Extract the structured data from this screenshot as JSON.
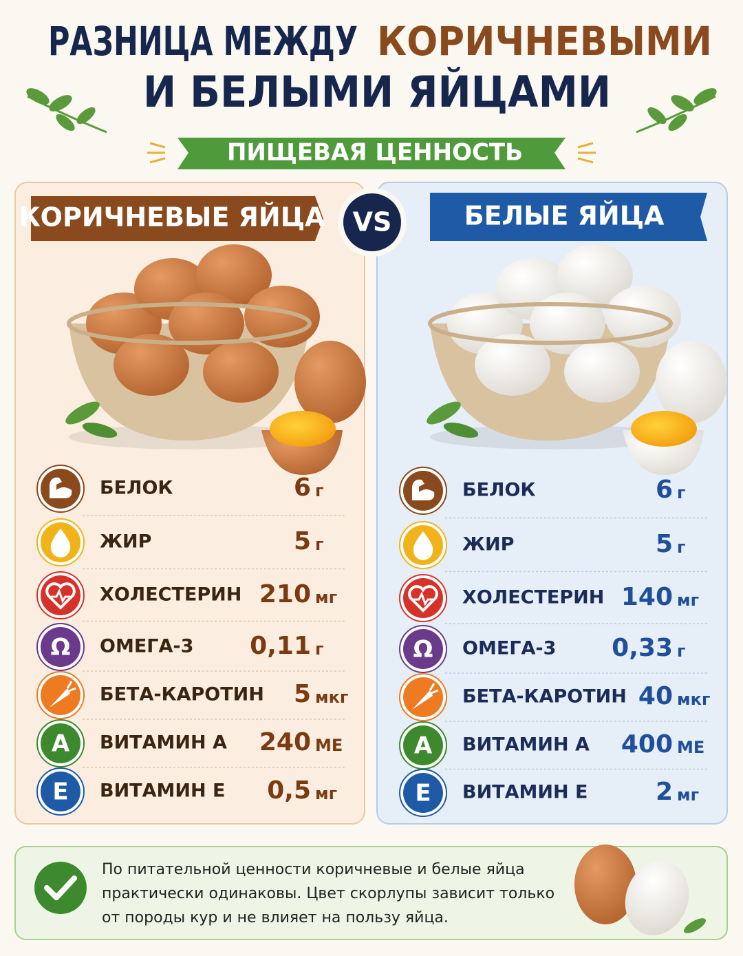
{
  "title": {
    "part1": "РАЗНИЦА МЕЖДУ",
    "part2": "КОРИЧНЕВЫМИ",
    "line2": "И БЕЛЫМИ ЯЙЦАМИ"
  },
  "subtitle": "ПИЩЕВАЯ ЦЕННОСТЬ",
  "vs": "VS",
  "panels": [
    {
      "title": "КОРИЧНЕВЫЕ ЯЙЦА",
      "rows": [
        {
          "name": "БЕЛОК",
          "amount": "6",
          "unit": "г"
        },
        {
          "name": "ЖИР",
          "amount": "5",
          "unit": "г"
        },
        {
          "name": "ХОЛЕСТЕРИН",
          "amount": "210",
          "unit": "мг"
        },
        {
          "name": "ОМЕГА-3",
          "amount": "0,11",
          "unit": "г",
          "icon": "Ω"
        },
        {
          "name": "БЕТА-КАРОТИН",
          "amount": "5",
          "unit": "мкг"
        },
        {
          "name": "ВИТАМИН А",
          "amount": "240",
          "unit": "МЕ",
          "icon": "A"
        },
        {
          "name": "ВИТАМИН Е",
          "amount": "0,5",
          "unit": "мг",
          "icon": "E"
        }
      ]
    },
    {
      "title": "БЕЛЫЕ ЯЙЦА",
      "rows": [
        {
          "name": "БЕЛОК",
          "amount": "6",
          "unit": "г"
        },
        {
          "name": "ЖИР",
          "amount": "5",
          "unit": "г"
        },
        {
          "name": "ХОЛЕСТЕРИН",
          "amount": "140",
          "unit": "мг"
        },
        {
          "name": "ОМЕГА-3",
          "amount": "0,33",
          "unit": "г",
          "icon": "Ω"
        },
        {
          "name": "БЕТА-КАРОТИН",
          "amount": "40",
          "unit": "мкг"
        },
        {
          "name": "ВИТАМИН А",
          "amount": "400",
          "unit": "МЕ",
          "icon": "A"
        },
        {
          "name": "ВИТАМИН Е",
          "amount": "2",
          "unit": "мг",
          "icon": "E"
        }
      ]
    }
  ],
  "footer": {
    "lines": [
      "По питательной ценности коричневые и белые яйца",
      "практически одинаковы. Цвет скорлупы зависит только",
      "от породы кур и не влияет на пользу яйца."
    ]
  }
}
